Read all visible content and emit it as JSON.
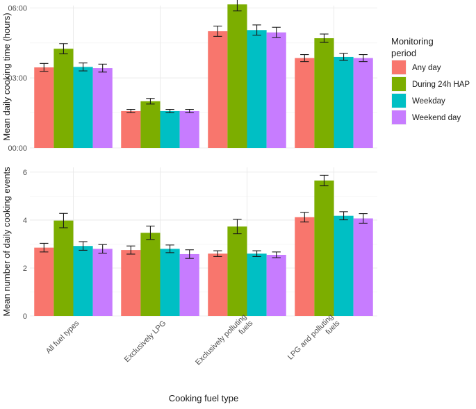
{
  "chart_data": {
    "type": "bar",
    "xlabel": "Cooking fuel type",
    "categories": [
      "All fuel types",
      "Exclusively LPG",
      "Exclusively polluting fuels",
      "LPG and polluting fuels"
    ],
    "category_tick_lines": [
      [
        "All fuel types"
      ],
      [
        "Exclusively LPG"
      ],
      [
        "Exclusively polluting",
        "fuels"
      ],
      [
        "LPG and polluting",
        "fuels"
      ]
    ],
    "legend": {
      "title_lines": [
        "Monitoring",
        "period"
      ],
      "placement": "right",
      "entries": [
        {
          "name": "Any day",
          "color": "#F8766D"
        },
        {
          "name": "During 24h HAP",
          "color": "#7CAE00"
        },
        {
          "name": "Weekday",
          "color": "#00BFC4"
        },
        {
          "name": "Weekend day",
          "color": "#C77CFF"
        }
      ]
    },
    "panels": [
      {
        "ylabel": "Mean daily cooking time (hours)",
        "ylim": [
          0,
          6.1
        ],
        "yticks": [
          0,
          3,
          6
        ],
        "ytick_labels": [
          "00:00",
          "03:00",
          "06:00"
        ],
        "grid": true,
        "series": [
          {
            "name": "Any day",
            "values": [
              3.45,
              1.58,
              5.0,
              3.85
            ],
            "err": [
              0.17,
              0.07,
              0.22,
              0.15
            ]
          },
          {
            "name": "During 24h HAP",
            "values": [
              4.25,
              2.0,
              6.15,
              4.7
            ],
            "err": [
              0.22,
              0.12,
              0.28,
              0.18
            ]
          },
          {
            "name": "Weekday",
            "values": [
              3.47,
              1.58,
              5.05,
              3.9
            ],
            "err": [
              0.17,
              0.07,
              0.22,
              0.15
            ]
          },
          {
            "name": "Weekend day",
            "values": [
              3.42,
              1.58,
              4.95,
              3.85
            ],
            "err": [
              0.17,
              0.07,
              0.22,
              0.15
            ]
          }
        ]
      },
      {
        "ylabel": "Mean number of daily cooking events",
        "ylim": [
          0,
          6.2
        ],
        "yticks": [
          0,
          2,
          4,
          6
        ],
        "ytick_labels": [
          "0",
          "2",
          "4",
          "6"
        ],
        "grid": true,
        "series": [
          {
            "name": "Any day",
            "values": [
              2.85,
              2.75,
              2.6,
              4.12
            ],
            "err": [
              0.18,
              0.17,
              0.12,
              0.2
            ]
          },
          {
            "name": "During 24h HAP",
            "values": [
              3.98,
              3.47,
              3.73,
              5.65
            ],
            "err": [
              0.3,
              0.28,
              0.3,
              0.22
            ]
          },
          {
            "name": "Weekday",
            "values": [
              2.92,
              2.8,
              2.6,
              4.18
            ],
            "err": [
              0.18,
              0.16,
              0.12,
              0.17
            ]
          },
          {
            "name": "Weekend day",
            "values": [
              2.8,
              2.58,
              2.55,
              4.07
            ],
            "err": [
              0.18,
              0.18,
              0.12,
              0.2
            ]
          }
        ]
      }
    ]
  }
}
